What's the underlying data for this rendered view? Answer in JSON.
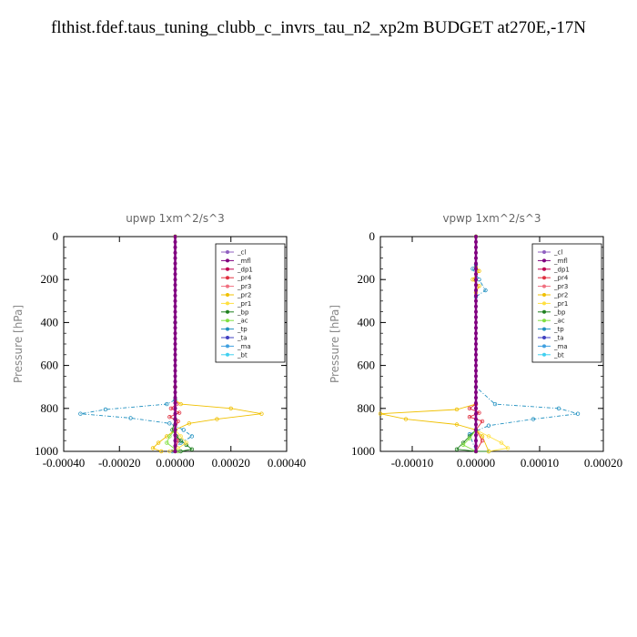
{
  "title": "flthist.fdef.taus_tuning_clubb_c_invrs_tau_n2_xp2m  BUDGET at270E,-17N",
  "legend_items": [
    {
      "label": "_cl",
      "color": "#9060c0"
    },
    {
      "label": "_mfl",
      "color": "#800080"
    },
    {
      "label": "_dp1",
      "color": "#c00050"
    },
    {
      "label": "_pr4",
      "color": "#e03040"
    },
    {
      "label": "_pr3",
      "color": "#f07080"
    },
    {
      "label": "_pr2",
      "color": "#f0c000"
    },
    {
      "label": "_pr1",
      "color": "#ffe040"
    },
    {
      "label": "_bp",
      "color": "#208020"
    },
    {
      "label": "_ac",
      "color": "#80e040"
    },
    {
      "label": "_tp",
      "color": "#2090c0"
    },
    {
      "label": "_ta",
      "color": "#4040c0"
    },
    {
      "label": "_ma",
      "color": "#40a0e0"
    },
    {
      "label": "_bt",
      "color": "#40d0f0"
    }
  ],
  "chart_data": [
    {
      "type": "line",
      "title": "upwp   1xm^2/s^3",
      "ylabel": "Pressure  [hPa]",
      "xlim": [
        -0.0004,
        0.0004
      ],
      "ylim": [
        1000,
        0
      ],
      "xticks": [
        "-0.00040",
        "-0.00020",
        "0.00000",
        "0.00020",
        "0.00040"
      ],
      "xtick_values": [
        -0.0004,
        -0.0002,
        0,
        0.0002,
        0.0004
      ],
      "yticks": [
        "0",
        "200",
        "400",
        "600",
        "800",
        "1000"
      ],
      "ytick_values": [
        0,
        200,
        400,
        600,
        800,
        1000
      ],
      "series": [
        {
          "name": "_pr2",
          "color": "#f0c000",
          "marker": "square",
          "x": [
            0,
            0,
            0,
            0,
            2e-05,
            0.0002,
            0.00031,
            0.00015,
            5e-05,
            0,
            -3e-05,
            -6e-05,
            -8e-05,
            -5e-05
          ],
          "y": [
            0,
            400,
            700,
            760,
            780,
            800,
            825,
            850,
            870,
            900,
            930,
            960,
            985,
            1000
          ]
        },
        {
          "name": "_tp",
          "color": "#2090c0",
          "marker": "star",
          "x": [
            0,
            0,
            0,
            0,
            -3e-05,
            -0.00025,
            -0.00034,
            -0.00016,
            -2e-05,
            3e-05,
            6e-05,
            2e-05,
            -1e-05
          ],
          "y": [
            0,
            400,
            700,
            760,
            780,
            805,
            825,
            845,
            870,
            900,
            930,
            960,
            1000
          ]
        },
        {
          "name": "_pr4",
          "color": "#e03040",
          "marker": "diamond",
          "x": [
            0,
            0,
            5e-06,
            -1.5e-05,
            1.5e-05,
            -2e-05,
            1e-05,
            0,
            1e-05,
            0
          ],
          "y": [
            0,
            700,
            780,
            800,
            820,
            840,
            860,
            900,
            950,
            1000
          ]
        },
        {
          "name": "_bp",
          "color": "#208020",
          "marker": "plus",
          "x": [
            0,
            0,
            -1e-05,
            5e-06,
            2e-05,
            4e-05,
            6e-05,
            2e-05
          ],
          "y": [
            0,
            850,
            900,
            930,
            950,
            970,
            990,
            1000
          ]
        },
        {
          "name": "_pr1",
          "color": "#ffe040",
          "marker": "circle",
          "x": [
            0,
            0,
            2e-05,
            4e-05,
            1e-05,
            -2e-05
          ],
          "y": [
            0,
            900,
            930,
            960,
            985,
            1000
          ]
        },
        {
          "name": "_ac",
          "color": "#80e040",
          "marker": "dot",
          "x": [
            0,
            0,
            -2e-05,
            -3e-05,
            1e-05
          ],
          "y": [
            0,
            900,
            930,
            960,
            1000
          ]
        },
        {
          "name": "_mfl",
          "color": "#800080",
          "marker": "dot",
          "x": [
            0,
            0
          ],
          "y": [
            0,
            1000
          ]
        }
      ]
    },
    {
      "type": "line",
      "title": "vpwp   1xm^2/s^3",
      "ylabel": "Pressure  [hPa]",
      "xlim": [
        -0.00015,
        0.0002
      ],
      "ylim": [
        1000,
        0
      ],
      "xticks": [
        "-0.00010",
        "0.00000",
        "0.00010",
        "0.00020"
      ],
      "xtick_values": [
        -0.0001,
        0,
        0.0001,
        0.0002
      ],
      "yticks": [
        "0",
        "200",
        "400",
        "600",
        "800",
        "1000"
      ],
      "ytick_values": [
        0,
        200,
        400,
        600,
        800,
        1000
      ],
      "series": [
        {
          "name": "_pr2",
          "color": "#f0c000",
          "marker": "square",
          "x": [
            0,
            0,
            5e-06,
            -5e-06,
            5e-06,
            0,
            0,
            0,
            -3e-05,
            -0.00015,
            -0.00011,
            -3e-05,
            0,
            1e-05,
            2e-05
          ],
          "y": [
            0,
            140,
            160,
            200,
            230,
            260,
            700,
            780,
            805,
            825,
            850,
            875,
            900,
            930,
            1000
          ]
        },
        {
          "name": "_tp",
          "color": "#2090c0",
          "marker": "star",
          "x": [
            0,
            0,
            -5e-06,
            5e-06,
            1.5e-05,
            0,
            0,
            3e-05,
            0.00013,
            0.00016,
            9e-05,
            2e-05,
            -1e-05,
            0
          ],
          "y": [
            0,
            130,
            150,
            200,
            250,
            280,
            700,
            780,
            800,
            825,
            850,
            880,
            920,
            1000
          ]
        },
        {
          "name": "_pr4",
          "color": "#e03040",
          "marker": "diamond",
          "x": [
            0,
            0,
            -1e-05,
            5e-06,
            -1e-05,
            1e-05,
            0,
            1e-05,
            0
          ],
          "y": [
            0,
            780,
            800,
            820,
            840,
            860,
            900,
            950,
            1000
          ]
        },
        {
          "name": "_bp",
          "color": "#208020",
          "marker": "plus",
          "x": [
            0,
            0,
            -1e-05,
            -2e-05,
            -3e-05,
            0,
            2e-05
          ],
          "y": [
            0,
            900,
            930,
            960,
            990,
            1000,
            1000
          ]
        },
        {
          "name": "_pr1",
          "color": "#ffe040",
          "marker": "circle",
          "x": [
            0,
            0,
            2e-05,
            4e-05,
            5e-05,
            2e-05
          ],
          "y": [
            0,
            900,
            930,
            960,
            985,
            1000
          ]
        },
        {
          "name": "_ac",
          "color": "#80e040",
          "marker": "dot",
          "x": [
            0,
            0,
            -1e-05,
            -2e-05,
            0
          ],
          "y": [
            0,
            900,
            940,
            970,
            1000
          ]
        },
        {
          "name": "_mfl",
          "color": "#800080",
          "marker": "dot",
          "x": [
            0,
            0
          ],
          "y": [
            0,
            1000
          ]
        }
      ]
    }
  ]
}
